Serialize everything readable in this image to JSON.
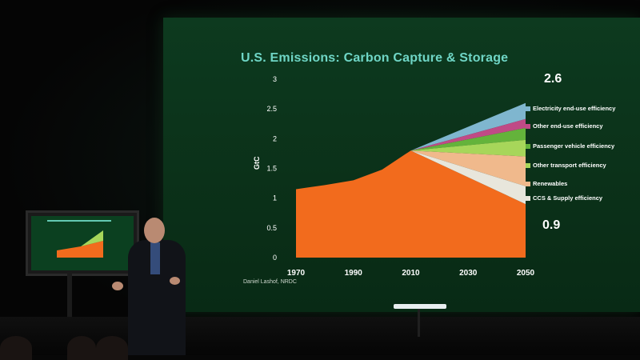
{
  "slide": {
    "title": "U.S. Emissions: Carbon Capture & Storage",
    "ylabel": "GtC",
    "credit": "Daniel Lashof, NRDC",
    "label_top": "2.6",
    "label_bottom": "0.9"
  },
  "legend": [
    {
      "label": "Electricity end-use efficiency",
      "color": "#7fb6cf"
    },
    {
      "label": "Other end-use efficiency",
      "color": "#c04a86"
    },
    {
      "label": "Passenger vehicle efficiency",
      "color": "#64b33b"
    },
    {
      "label": "Other transport efficiency",
      "color": "#a7d65a"
    },
    {
      "label": "Renewables",
      "color": "#f0b98c"
    },
    {
      "label": "CCS & Supply efficiency",
      "color": "#e8e6dc"
    }
  ],
  "chart_data": {
    "type": "area",
    "title": "U.S. Emissions: Carbon Capture & Storage",
    "ylabel": "GtC",
    "xlabel": "",
    "ylim": [
      0,
      3
    ],
    "xlim": [
      1970,
      2050
    ],
    "x_ticks": [
      "1970",
      "1990",
      "2010",
      "2030",
      "2050"
    ],
    "y_ticks": [
      "0",
      "0.5",
      "1",
      "1.5",
      "2",
      "2.5",
      "3"
    ],
    "baseline_series": {
      "name": "",
      "color": "#f26b1d",
      "x": [
        1970,
        1980,
        1990,
        2000,
        2010,
        2030,
        2050
      ],
      "y": [
        1.15,
        1.22,
        1.3,
        1.48,
        1.8,
        1.35,
        0.9
      ]
    },
    "wedges_at_2050": [
      {
        "name": "Electricity end-use efficiency",
        "upper": 2.6,
        "lower": 2.33
      },
      {
        "name": "Other end-use efficiency",
        "upper": 2.33,
        "lower": 2.18
      },
      {
        "name": "Passenger vehicle efficiency",
        "upper": 2.18,
        "lower": 1.98
      },
      {
        "name": "Other transport efficiency",
        "upper": 1.98,
        "lower": 1.7
      },
      {
        "name": "Renewables",
        "upper": 1.7,
        "lower": 1.2
      },
      {
        "name": "CCS & Supply efficiency",
        "upper": 1.2,
        "lower": 0.9
      }
    ],
    "wedge_start": {
      "x": 2010,
      "y": 1.8
    },
    "grid": false,
    "legend": "right"
  },
  "scene": {
    "presenter": "presenter",
    "monitor": "confidence monitor"
  }
}
